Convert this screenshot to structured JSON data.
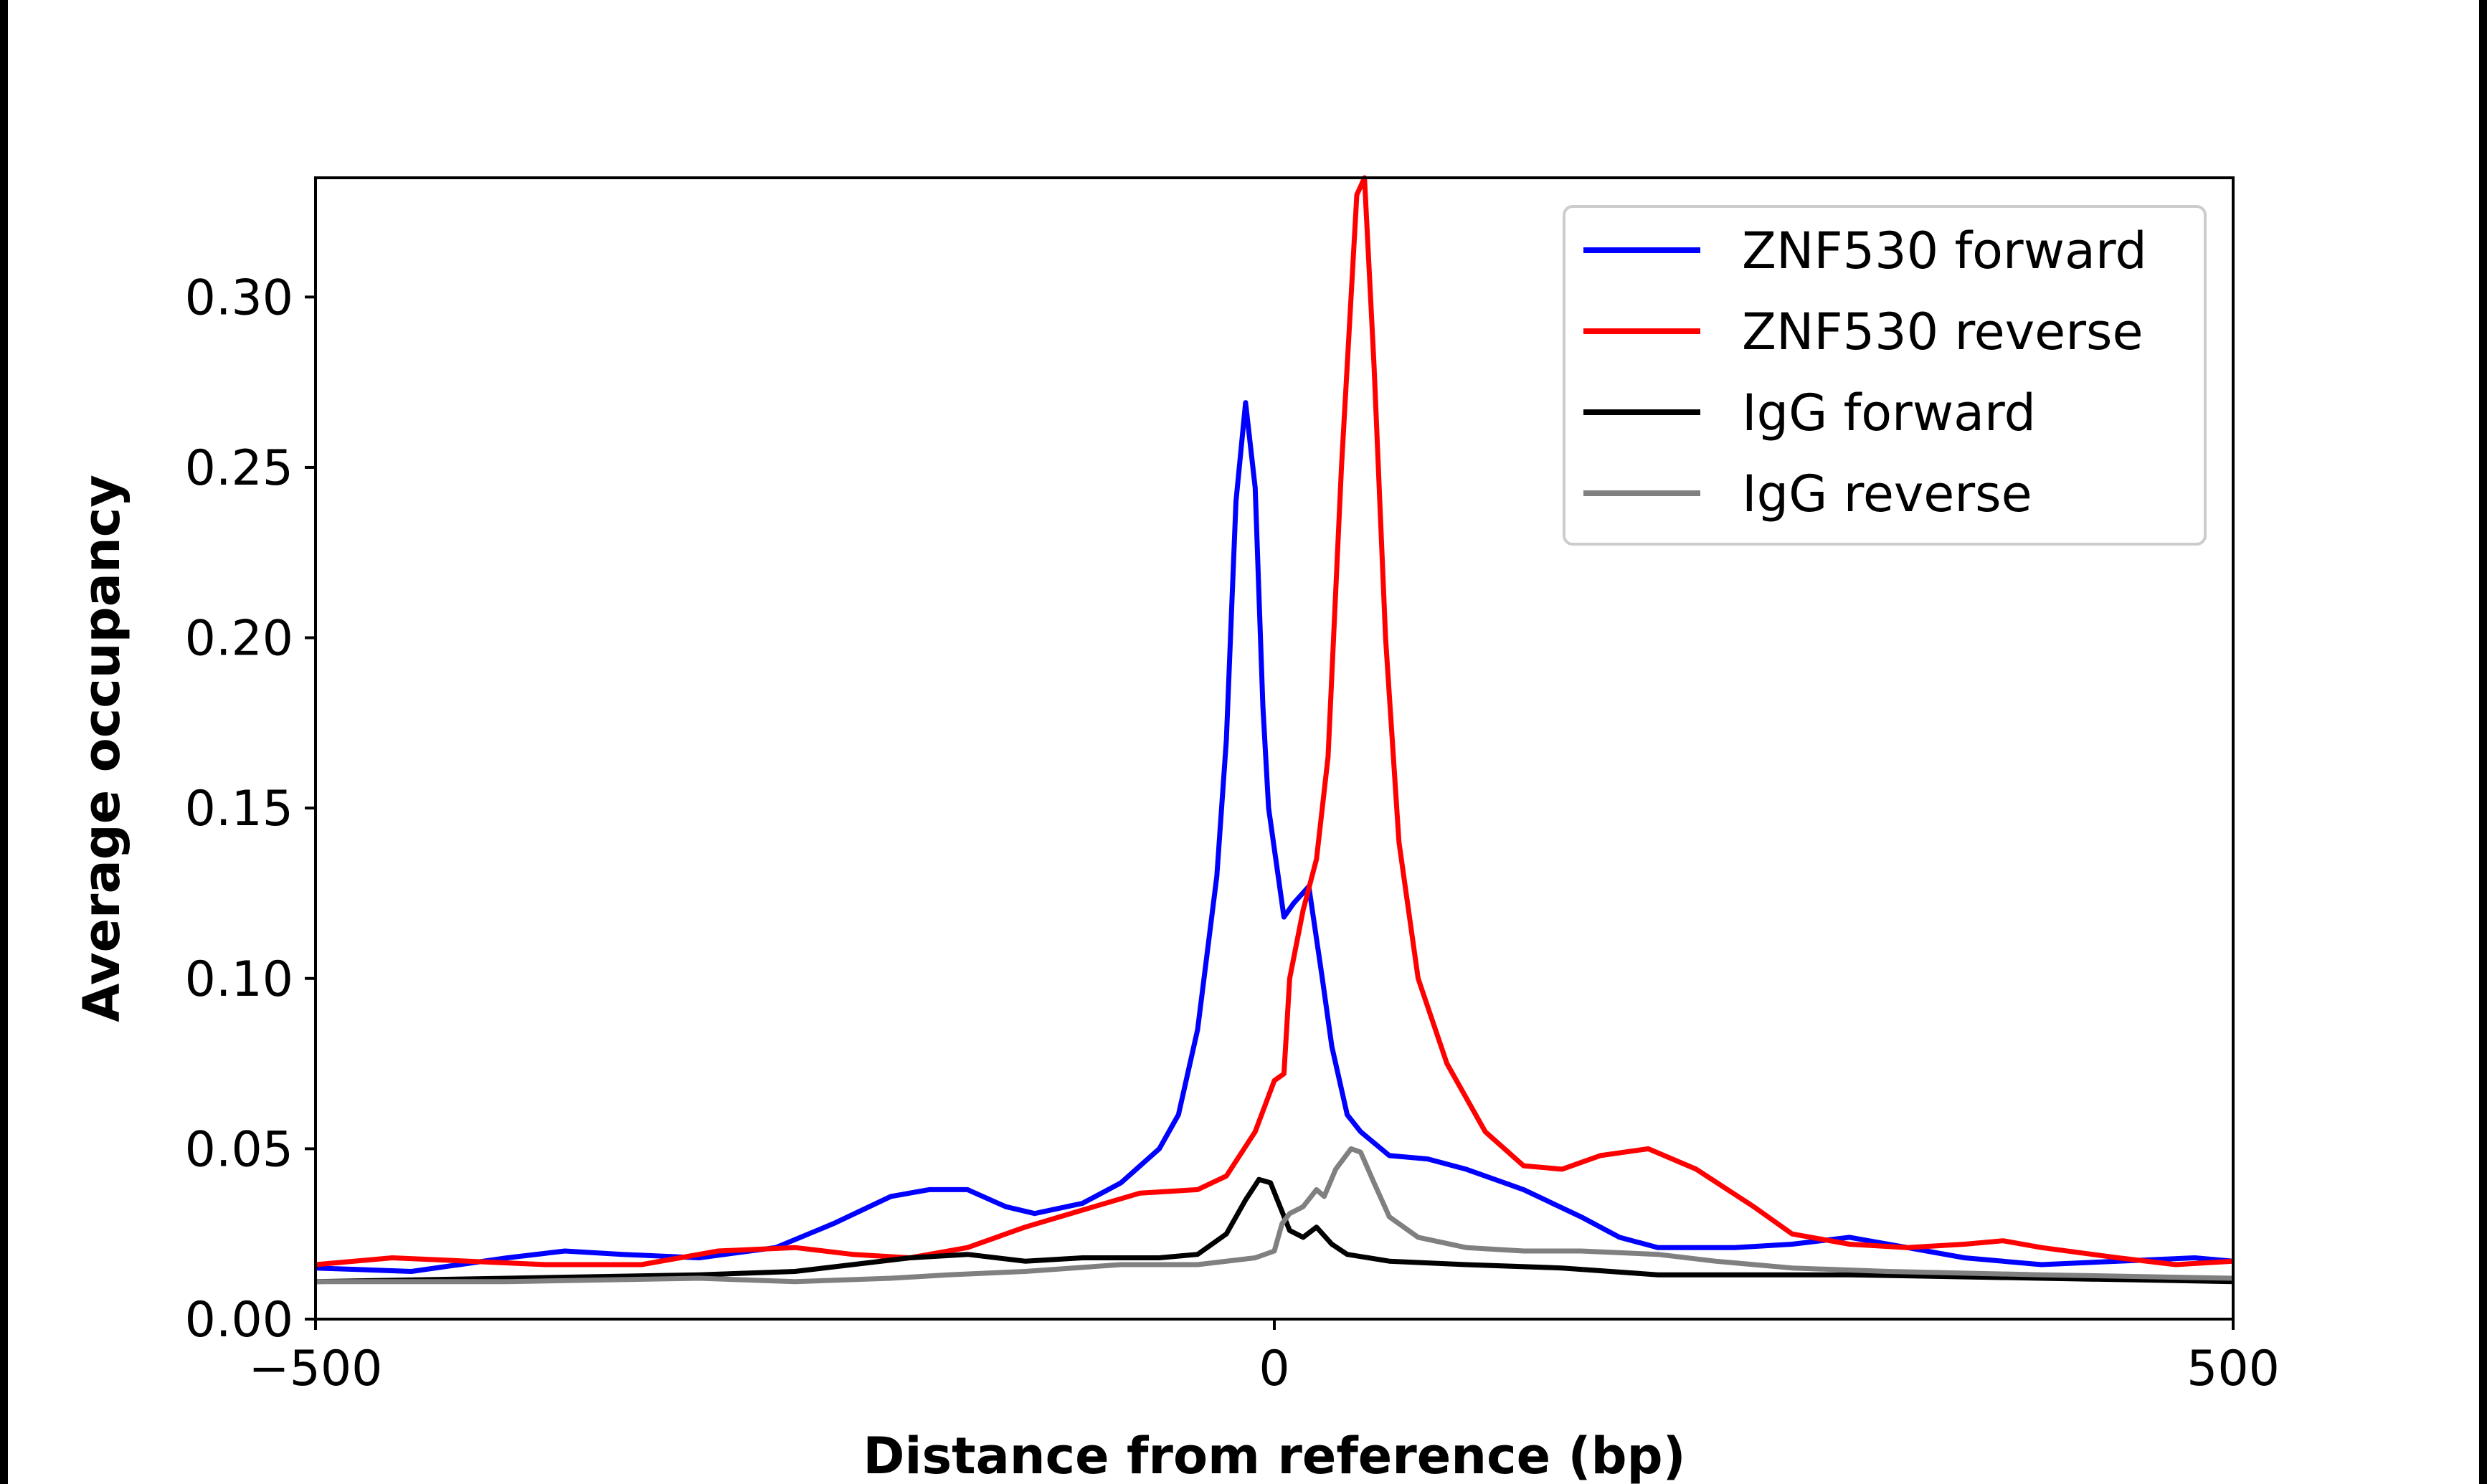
{
  "chart_data": {
    "type": "line",
    "title": "",
    "xlabel": "Distance from reference (bp)",
    "ylabel": "Average occupancy",
    "xlim": [
      -500,
      500
    ],
    "ylim": [
      0,
      0.335
    ],
    "xticks": [
      -500,
      0,
      500
    ],
    "xtick_labels": [
      "−500",
      "0",
      "500"
    ],
    "yticks": [
      0,
      0.05,
      0.1,
      0.15,
      0.2,
      0.25,
      0.3
    ],
    "ytick_labels": [
      "0.00",
      "0.05",
      "0.10",
      "0.15",
      "0.20",
      "0.25",
      "0.30"
    ],
    "grid": false,
    "legend_position": "top-right",
    "series": [
      {
        "name": "ZNF530 forward",
        "color": "#0000ff",
        "x": [
          -500,
          -450,
          -400,
          -370,
          -340,
          -300,
          -260,
          -230,
          -200,
          -180,
          -160,
          -140,
          -125,
          -100,
          -80,
          -60,
          -50,
          -40,
          -30,
          -25,
          -20,
          -15,
          -10,
          -6,
          -3,
          5,
          10,
          18,
          25,
          30,
          38,
          45,
          60,
          80,
          100,
          130,
          160,
          180,
          200,
          240,
          270,
          300,
          330,
          360,
          400,
          440,
          480,
          500
        ],
        "y": [
          0.015,
          0.014,
          0.018,
          0.02,
          0.019,
          0.018,
          0.021,
          0.028,
          0.036,
          0.038,
          0.038,
          0.033,
          0.031,
          0.034,
          0.04,
          0.05,
          0.06,
          0.085,
          0.13,
          0.17,
          0.24,
          0.269,
          0.244,
          0.18,
          0.15,
          0.118,
          0.122,
          0.127,
          0.1,
          0.08,
          0.06,
          0.055,
          0.048,
          0.047,
          0.044,
          0.038,
          0.03,
          0.024,
          0.021,
          0.021,
          0.022,
          0.024,
          0.021,
          0.018,
          0.016,
          0.017,
          0.018,
          0.017
        ]
      },
      {
        "name": "ZNF530 reverse",
        "color": "#ff0000",
        "x": [
          -500,
          -460,
          -420,
          -380,
          -330,
          -290,
          -250,
          -220,
          -190,
          -160,
          -130,
          -100,
          -70,
          -40,
          -25,
          -10,
          0,
          5,
          8,
          15,
          22,
          28,
          35,
          40,
          43,
          47,
          52,
          58,
          65,
          75,
          90,
          110,
          130,
          150,
          170,
          195,
          220,
          250,
          270,
          300,
          330,
          360,
          380,
          400,
          440,
          470,
          500
        ],
        "y": [
          0.016,
          0.018,
          0.017,
          0.016,
          0.016,
          0.02,
          0.021,
          0.019,
          0.018,
          0.021,
          0.027,
          0.032,
          0.037,
          0.038,
          0.042,
          0.055,
          0.07,
          0.072,
          0.1,
          0.12,
          0.135,
          0.165,
          0.25,
          0.3,
          0.33,
          0.335,
          0.28,
          0.2,
          0.14,
          0.1,
          0.075,
          0.055,
          0.045,
          0.044,
          0.048,
          0.05,
          0.044,
          0.033,
          0.025,
          0.022,
          0.021,
          0.022,
          0.023,
          0.021,
          0.018,
          0.016,
          0.017
        ]
      },
      {
        "name": "IgG forward",
        "color": "#000000",
        "x": [
          -500,
          -400,
          -300,
          -250,
          -220,
          -190,
          -160,
          -130,
          -100,
          -60,
          -40,
          -25,
          -15,
          -8,
          -2,
          3,
          8,
          15,
          22,
          30,
          38,
          60,
          100,
          150,
          200,
          300,
          400,
          500
        ],
        "y": [
          0.011,
          0.012,
          0.013,
          0.014,
          0.016,
          0.018,
          0.019,
          0.017,
          0.018,
          0.018,
          0.019,
          0.025,
          0.035,
          0.041,
          0.04,
          0.033,
          0.026,
          0.024,
          0.027,
          0.022,
          0.019,
          0.017,
          0.016,
          0.015,
          0.013,
          0.013,
          0.012,
          0.011
        ]
      },
      {
        "name": "IgG reverse",
        "color": "#808080",
        "x": [
          -500,
          -400,
          -300,
          -250,
          -200,
          -170,
          -130,
          -80,
          -40,
          -10,
          0,
          4,
          8,
          15,
          22,
          26,
          32,
          40,
          45,
          52,
          60,
          75,
          100,
          130,
          160,
          200,
          230,
          270,
          320,
          400,
          500
        ],
        "y": [
          0.011,
          0.011,
          0.012,
          0.011,
          0.012,
          0.013,
          0.014,
          0.016,
          0.016,
          0.018,
          0.02,
          0.028,
          0.031,
          0.033,
          0.038,
          0.036,
          0.044,
          0.05,
          0.049,
          0.04,
          0.03,
          0.024,
          0.021,
          0.02,
          0.02,
          0.019,
          0.017,
          0.015,
          0.014,
          0.013,
          0.012
        ]
      }
    ]
  }
}
